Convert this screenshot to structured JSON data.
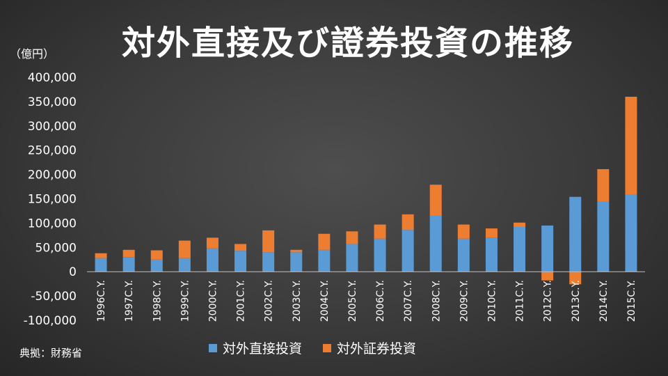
{
  "chart_data": {
    "type": "bar",
    "stacked": true,
    "title": "対外直接及び證券投資の推移",
    "unit": "（億円）",
    "source": "典拠：財務省",
    "categories": [
      "1996C.Y.",
      "1997C.Y.",
      "1998C.Y.",
      "1999C.Y.",
      "2000C.Y.",
      "2001C.Y.",
      "2002C.Y.",
      "2003C.Y.",
      "2004C.Y.",
      "2005C.Y.",
      "2006C.Y.",
      "2007C.Y.",
      "2008C.Y.",
      "2009C.Y.",
      "2010C.Y.",
      "2011C.Y.",
      "2012C.Y.",
      "2013C.Y.",
      "2014C.Y.",
      "2015C.Y."
    ],
    "series": [
      {
        "name": "対外直接投資",
        "color": "#5b9bd5",
        "values": [
          28000,
          30000,
          25000,
          28000,
          48000,
          43000,
          40000,
          40000,
          45000,
          57000,
          68000,
          86000,
          115000,
          68000,
          70000,
          92000,
          95000,
          154000,
          145000,
          158000
        ]
      },
      {
        "name": "対外証券投資",
        "color": "#ed7d31",
        "values": [
          10000,
          15000,
          19000,
          36000,
          22000,
          14000,
          45000,
          5000,
          33000,
          26000,
          29000,
          32000,
          64000,
          29000,
          19000,
          9000,
          -18000,
          -26000,
          66000,
          202000
        ]
      }
    ],
    "ylim": [
      -100000,
      400000
    ],
    "yticks": [
      400000,
      350000,
      300000,
      250000,
      200000,
      150000,
      100000,
      50000,
      0,
      -50000,
      -100000
    ],
    "ytick_labels": [
      "400,000",
      "350,000",
      "300,000",
      "250,000",
      "200,000",
      "150,000",
      "100,000",
      "50,000",
      "0",
      "-50,000",
      "-100,000"
    ],
    "grid": false,
    "legend": "bottom"
  }
}
